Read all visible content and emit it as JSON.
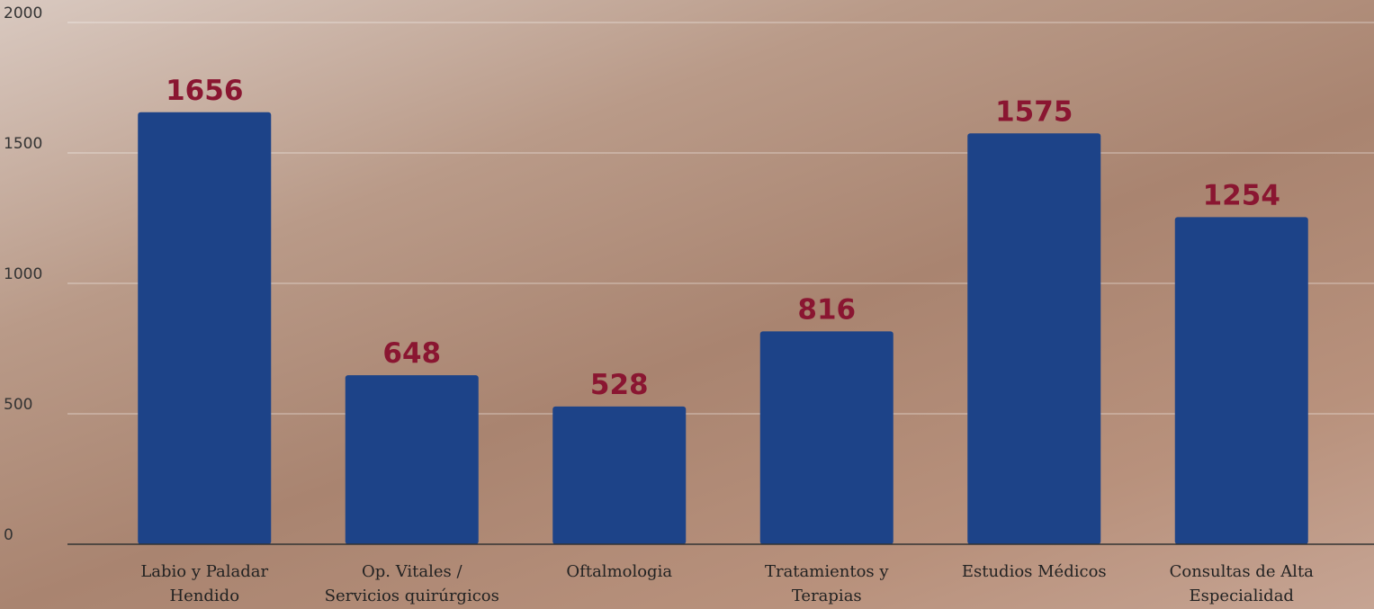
{
  "chart_data": {
    "type": "bar",
    "categories": [
      "Labio y Paladar Hendido",
      "Op. Vitales / Servicios quirúrgicos",
      "Oftalmologia",
      "Tratamientos y Terapias",
      "Estudios Médicos",
      "Consultas de Alta Especialidad"
    ],
    "values": [
      1656,
      648,
      528,
      816,
      1575,
      1254
    ],
    "color": "#1d4388",
    "label_color": "#8a1631",
    "ylim": [
      0,
      2000
    ],
    "yticks": [
      0,
      500,
      1000,
      1500,
      2000
    ],
    "grid": true
  }
}
